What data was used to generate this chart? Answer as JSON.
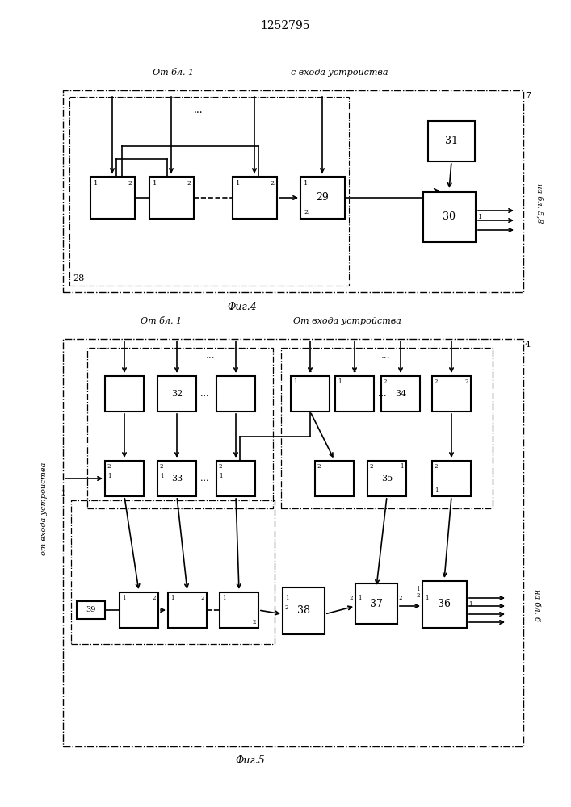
{
  "title": "1252795",
  "fig4_label": "Фиг.4",
  "fig5_label": "Фиг.5",
  "fig4_from_bl1": "От бл. 1",
  "fig4_from_input": "с входа устройства",
  "fig5_from_bl1": "От бл. 1",
  "fig5_from_input": "От входа устройства",
  "fig5_from_input_left": "от входа устройства",
  "fig4_to_bl": "на бл. 5,8",
  "fig5_to_bl": "на бл. 6",
  "bg_color": "#ffffff"
}
